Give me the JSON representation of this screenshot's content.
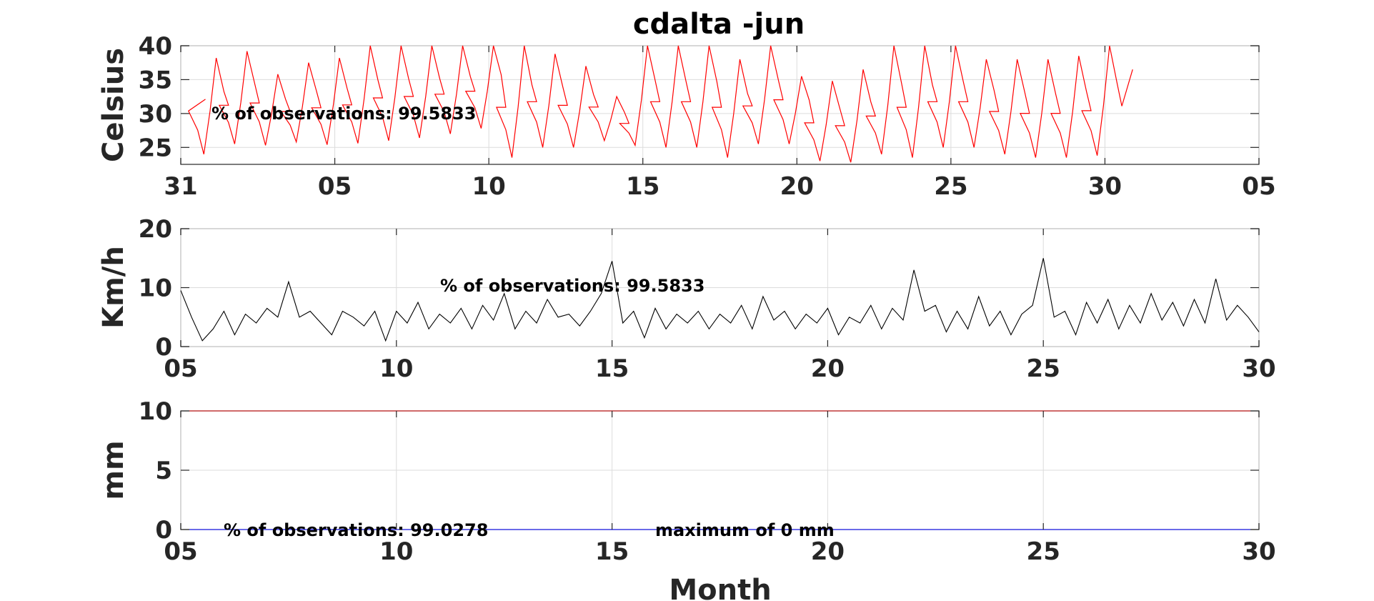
{
  "chart_data": [
    {
      "type": "line",
      "title": "cdalta -jun",
      "ylabel": "Celsius",
      "xlabel": "",
      "xlim": [
        31,
        66
      ],
      "ylim": [
        22.5,
        40
      ],
      "x_ticks": [
        31,
        36,
        41,
        46,
        51,
        56,
        61,
        66
      ],
      "x_tick_labels": [
        "31",
        "05",
        "10",
        "15",
        "20",
        "25",
        "30",
        "05"
      ],
      "y_ticks": [
        25,
        30,
        35,
        40
      ],
      "y_tick_labels": [
        "25",
        "30",
        "35",
        "40"
      ],
      "grid": true,
      "annotation": "% of observations: 99.5833",
      "series": [
        {
          "color": "#ff0000",
          "daily_min": [
            24.0,
            25.5,
            25.3,
            25.8,
            25.4,
            25.6,
            26.0,
            26.4,
            27.0,
            27.8,
            23.5,
            25.0,
            25.0,
            26.0,
            25.3,
            25.0,
            25.0,
            23.5,
            25.5,
            25.5,
            23.0,
            22.8,
            24.0,
            23.5,
            25.0,
            25.0,
            24.0,
            23.5,
            23.5,
            23.8
          ],
          "daily_max": [
            38.2,
            39.2,
            35.8,
            37.5,
            38.2,
            40.0,
            40.0,
            40.0,
            40.0,
            40.0,
            40.0,
            38.8,
            37.0,
            32.5,
            40.0,
            40.0,
            40.0,
            38.0,
            40.0,
            35.5,
            34.8,
            36.5,
            40.0,
            40.0,
            40.0,
            38.0,
            38.0,
            38.0,
            38.5,
            40.0
          ]
        }
      ]
    },
    {
      "type": "line",
      "title": "",
      "ylabel": "Km/h",
      "xlabel": "",
      "xlim": [
        5,
        30
      ],
      "ylim": [
        0,
        20
      ],
      "x_ticks": [
        5,
        10,
        15,
        20,
        25,
        30
      ],
      "x_tick_labels": [
        "05",
        "10",
        "15",
        "20",
        "25",
        "30"
      ],
      "y_ticks": [
        0,
        10,
        20
      ],
      "y_tick_labels": [
        "0",
        "10",
        "20"
      ],
      "grid": true,
      "annotation": "% of observations: 99.5833",
      "series": [
        {
          "color": "#000000",
          "x": [
            5.0,
            5.25,
            5.5,
            5.75,
            6.0,
            6.25,
            6.5,
            6.75,
            7.0,
            7.25,
            7.5,
            7.75,
            8.0,
            8.25,
            8.5,
            8.75,
            9.0,
            9.25,
            9.5,
            9.75,
            10.0,
            10.25,
            10.5,
            10.75,
            11.0,
            11.25,
            11.5,
            11.75,
            12.0,
            12.25,
            12.5,
            12.75,
            13.0,
            13.25,
            13.5,
            13.75,
            14.0,
            14.25,
            14.5,
            14.75,
            15.0,
            15.25,
            15.5,
            15.75,
            16.0,
            16.25,
            16.5,
            16.75,
            17.0,
            17.25,
            17.5,
            17.75,
            18.0,
            18.25,
            18.5,
            18.75,
            19.0,
            19.25,
            19.5,
            19.75,
            20.0,
            20.25,
            20.5,
            20.75,
            21.0,
            21.25,
            21.5,
            21.75,
            22.0,
            22.25,
            22.5,
            22.75,
            23.0,
            23.25,
            23.5,
            23.75,
            24.0,
            24.25,
            24.5,
            24.75,
            25.0,
            25.25,
            25.5,
            25.75,
            26.0,
            26.25,
            26.5,
            26.75,
            27.0,
            27.25,
            27.5,
            27.75,
            28.0,
            28.25,
            28.5,
            28.75,
            29.0,
            29.25,
            29.5,
            29.75,
            30.0
          ],
          "values": [
            9.5,
            5.0,
            1.0,
            3.0,
            6.0,
            2.0,
            5.5,
            4.0,
            6.5,
            5.0,
            11.0,
            5.0,
            6.0,
            4.0,
            2.0,
            6.0,
            5.0,
            3.5,
            6.0,
            1.0,
            6.0,
            4.0,
            7.5,
            3.0,
            5.5,
            4.0,
            6.5,
            3.0,
            7.0,
            4.5,
            9.0,
            3.0,
            6.0,
            4.0,
            8.0,
            5.0,
            5.5,
            3.5,
            6.0,
            9.0,
            14.5,
            4.0,
            6.0,
            1.5,
            6.5,
            3.0,
            5.5,
            4.0,
            6.0,
            3.0,
            5.5,
            4.0,
            7.0,
            3.0,
            8.5,
            4.5,
            6.0,
            3.0,
            5.5,
            4.0,
            6.5,
            2.0,
            5.0,
            4.0,
            7.0,
            3.0,
            6.5,
            4.5,
            13.0,
            6.0,
            7.0,
            2.5,
            6.0,
            3.0,
            8.5,
            3.5,
            6.0,
            2.0,
            5.5,
            7.0,
            15.0,
            5.0,
            6.0,
            2.0,
            7.5,
            4.0,
            8.0,
            3.0,
            7.0,
            4.0,
            9.0,
            4.5,
            7.5,
            3.5,
            8.0,
            4.0,
            11.5,
            4.5,
            7.0,
            5.0,
            2.5
          ]
        }
      ]
    },
    {
      "type": "line",
      "title": "",
      "ylabel": "mm",
      "xlabel": "Month",
      "xlim": [
        5,
        30
      ],
      "ylim": [
        0,
        10
      ],
      "x_ticks": [
        5,
        10,
        15,
        20,
        25,
        30
      ],
      "x_tick_labels": [
        "05",
        "10",
        "15",
        "20",
        "25",
        "30"
      ],
      "y_ticks": [
        0,
        5,
        10
      ],
      "y_tick_labels": [
        "0",
        "5",
        "10"
      ],
      "grid": true,
      "annotation": "% of observations: 99.0278",
      "annotation_2": "maximum of 0 mm",
      "series": [
        {
          "color": "#0000ff",
          "x": [
            5,
            30
          ],
          "values": [
            0,
            0
          ]
        },
        {
          "color": "#cc0000",
          "x": [
            5,
            30
          ],
          "values": [
            10,
            10
          ]
        }
      ]
    }
  ]
}
